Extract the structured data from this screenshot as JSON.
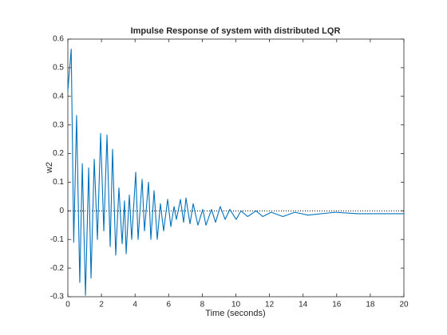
{
  "chart_data": {
    "type": "line",
    "title": "Impulse Response of system with distributed LQR",
    "xlabel": "Time (seconds)",
    "ylabel": "w2",
    "x": [
      0,
      0.2,
      0.35,
      0.52,
      0.71,
      0.86,
      1.05,
      1.24,
      1.38,
      1.57,
      1.76,
      1.95,
      2.14,
      2.33,
      2.52,
      2.66,
      2.85,
      3.04,
      3.23,
      3.37,
      3.47,
      3.66,
      3.8,
      4.04,
      4.18,
      4.42,
      4.56,
      4.8,
      4.94,
      5.13,
      5.32,
      5.51,
      5.7,
      5.94,
      6.13,
      6.32,
      6.46,
      6.7,
      6.89,
      7.03,
      7.27,
      7.46,
      7.74,
      8.03,
      8.22,
      8.55,
      8.79,
      9.07,
      9.36,
      9.64,
      10.02,
      10.3,
      10.7,
      11.2,
      11.6,
      12.1,
      12.8,
      13.5,
      14.3,
      15.9,
      17.3,
      20
    ],
    "series": [
      {
        "name": "w2",
        "color": "#0072bd",
        "values": [
          0.42,
          0.565,
          -0.11,
          0.333,
          -0.25,
          0.165,
          -0.295,
          0.15,
          -0.235,
          0.18,
          -0.1,
          0.27,
          -0.07,
          0.265,
          -0.125,
          0.215,
          -0.155,
          0.08,
          -0.115,
          0.035,
          -0.15,
          0.055,
          -0.1,
          0.135,
          -0.1,
          0.11,
          -0.07,
          0.1,
          -0.1,
          0.07,
          -0.1,
          0.025,
          -0.07,
          0.04,
          -0.055,
          0.015,
          -0.03,
          0.04,
          -0.04,
          0.045,
          -0.045,
          0.025,
          -0.05,
          0.005,
          -0.05,
          0.005,
          -0.04,
          0.015,
          -0.03,
          0.005,
          -0.03,
          0,
          -0.02,
          0,
          -0.02,
          -0.005,
          -0.02,
          -0.005,
          -0.015,
          -0.005,
          -0.01,
          -0.01
        ]
      }
    ],
    "xlim": [
      0,
      20
    ],
    "xticks": [
      0,
      2,
      4,
      6,
      8,
      10,
      12,
      14,
      16,
      18,
      20
    ],
    "ylim": [
      -0.3,
      0.6
    ],
    "yticks": [
      -0.3,
      -0.2,
      -0.1,
      0,
      0.1,
      0.2,
      0.3,
      0.4,
      0.5,
      0.6
    ],
    "hline": 0
  }
}
